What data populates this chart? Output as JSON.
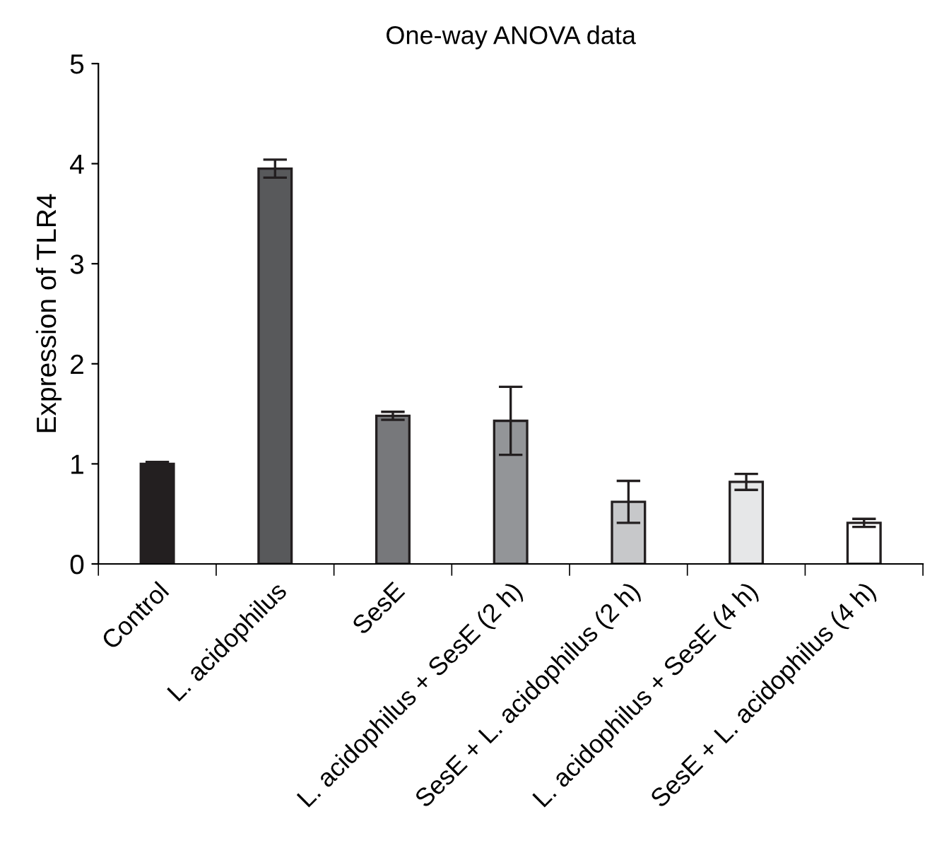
{
  "chart_data": {
    "type": "bar",
    "title": "One-way ANOVA data",
    "ylabel": "Expression of TLR4",
    "categories": [
      "Control",
      "L. acidophilus",
      "SesE",
      "L. acidophilus + SesE (2 h)",
      "SesE + L. acidophilus (2 h)",
      "L. acidophilus + SesE (4 h)",
      "SesE + L. acidophilus (4 h)"
    ],
    "values": [
      1.0,
      3.95,
      1.48,
      1.43,
      0.62,
      0.82,
      0.41
    ],
    "errors": [
      0.02,
      0.09,
      0.04,
      0.34,
      0.21,
      0.08,
      0.04
    ],
    "colors": [
      "#231f20",
      "#58595b",
      "#77787b",
      "#939598",
      "#c7c8ca",
      "#e6e7e8",
      "#ffffff"
    ],
    "ylim": [
      0,
      5
    ],
    "yticks": [
      0,
      1,
      2,
      3,
      4,
      5
    ],
    "grid": false,
    "legend": false
  }
}
